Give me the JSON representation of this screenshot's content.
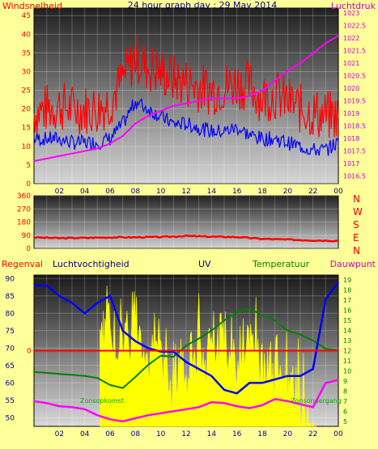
{
  "colors": {
    "background": "#ffff99",
    "wind": "#ff0000",
    "wind_avg": "#0000ff",
    "pressure": "#ff00ff",
    "direction": "#ff0000",
    "rain": "#ff0000",
    "humidity": "#0000ff",
    "uv": "#ffff00",
    "temperature": "#008000",
    "dewpoint": "#ff00ff",
    "dark_text": "#00008b"
  },
  "chart_data": [
    {
      "type": "line",
      "title": "24 hour graph day : 29 May 2014",
      "ylabel_left": "Windsnelheid",
      "ylabel_right": "Luchtdruk",
      "x_ticks": [
        "02",
        "04",
        "06",
        "08",
        "10",
        "12",
        "14",
        "16",
        "18",
        "20",
        "22",
        "00"
      ],
      "y_left_ticks": [
        "0",
        "5",
        "10",
        "15",
        "20",
        "25",
        "30",
        "35",
        "40",
        "45"
      ],
      "y_left_range": [
        0,
        47
      ],
      "y_right_ticks": [
        "1016.5",
        "1017",
        "1017.5",
        "1018",
        "1018.5",
        "1019",
        "1019.5",
        "1020",
        "1020.5",
        "1021",
        "1021.5",
        "1022",
        "1022.5",
        "1023"
      ],
      "y_right_range": [
        1016.2,
        1023.2
      ],
      "series": [
        {
          "key": "gust",
          "hours": [
            0,
            1,
            2,
            3,
            4,
            5,
            6,
            7,
            8,
            9,
            10,
            11,
            12,
            13,
            14,
            15,
            16,
            17,
            18,
            19,
            20,
            21,
            22,
            23,
            24
          ],
          "values": [
            19,
            20,
            21,
            20,
            20,
            20,
            22,
            28,
            34,
            31,
            30,
            28,
            27,
            26,
            25,
            26,
            27,
            26,
            23,
            24,
            22,
            20,
            19,
            18,
            18
          ]
        },
        {
          "key": "avg",
          "hours": [
            0,
            1,
            2,
            3,
            4,
            5,
            6,
            7,
            8,
            9,
            10,
            11,
            12,
            13,
            14,
            15,
            16,
            17,
            18,
            19,
            20,
            21,
            22,
            23,
            24
          ],
          "values": [
            12,
            12,
            12,
            11,
            11,
            11,
            12,
            16,
            22,
            20,
            18,
            16,
            16,
            15,
            14,
            14,
            15,
            13,
            12,
            12,
            11,
            10,
            9,
            9,
            11
          ]
        },
        {
          "key": "pressure",
          "hours": [
            0,
            1,
            2,
            3,
            4,
            5,
            6,
            7,
            8,
            9,
            10,
            11,
            12,
            13,
            14,
            15,
            16,
            17,
            18,
            19,
            20,
            21,
            22,
            23,
            24
          ],
          "values": [
            1017.1,
            1017.2,
            1017.3,
            1017.4,
            1017.5,
            1017.6,
            1017.8,
            1018.1,
            1018.6,
            1018.9,
            1019.1,
            1019.3,
            1019.4,
            1019.5,
            1019.6,
            1019.6,
            1019.6,
            1019.7,
            1019.9,
            1020.3,
            1020.7,
            1021.0,
            1021.4,
            1021.8,
            1022.1
          ]
        }
      ]
    },
    {
      "type": "line",
      "y_labels": [
        "360",
        "270",
        "180",
        "90",
        "0"
      ],
      "direction_letters": [
        "N",
        "W",
        "S",
        "E",
        "N"
      ],
      "y_range": [
        0,
        360
      ],
      "x_ticks": [
        "02",
        "04",
        "06",
        "08",
        "10",
        "12",
        "14",
        "16",
        "18",
        "20",
        "22",
        "00"
      ],
      "series": [
        {
          "key": "direction",
          "hours": [
            0,
            2,
            4,
            6,
            8,
            10,
            12,
            14,
            16,
            18,
            20,
            22,
            24
          ],
          "values": [
            75,
            70,
            72,
            75,
            76,
            78,
            85,
            80,
            78,
            65,
            60,
            55,
            52
          ]
        }
      ]
    },
    {
      "type": "line",
      "labels": {
        "regenval": "Regenval",
        "humidity": "Luchtvochtigheid",
        "uv": "UV",
        "temperature": "Temperatuur",
        "dewpoint": "Dauwpunt"
      },
      "x_ticks": [
        "02",
        "04",
        "06",
        "08",
        "10",
        "12",
        "14",
        "16",
        "18",
        "20",
        "22",
        "00"
      ],
      "y_left_ticks": [
        "50",
        "55",
        "60",
        "65",
        "70",
        "75",
        "80",
        "85",
        "90"
      ],
      "y_left_range": [
        47.5,
        91
      ],
      "y_right_ticks": [
        "5",
        "6",
        "7",
        "8",
        "9",
        "10",
        "11",
        "12",
        "13",
        "14",
        "15",
        "16",
        "17",
        "18",
        "19"
      ],
      "y_right_range": [
        4.5,
        19.5
      ],
      "rain_label": "0",
      "rain_level": 12,
      "annotations": {
        "sunrise": "Zonsopkomst",
        "sunset": "Zonsondergang"
      },
      "sunrise_hour": 5.3,
      "sunset_hour": 22.2,
      "series": [
        {
          "key": "humidity",
          "hours": [
            0,
            1,
            2,
            3,
            4,
            5,
            6,
            7,
            8,
            9,
            10,
            11,
            12,
            13,
            14,
            15,
            16,
            17,
            18,
            19,
            20,
            21,
            22,
            23,
            24
          ],
          "values": [
            88,
            88,
            85,
            83,
            80,
            83,
            85,
            75,
            72,
            70,
            69,
            69,
            66,
            64,
            62,
            58,
            57,
            60,
            60,
            61,
            62,
            62,
            64,
            84,
            89
          ]
        },
        {
          "key": "temperature",
          "hours": [
            0,
            1,
            2,
            3,
            4,
            5,
            6,
            7,
            8,
            9,
            10,
            11,
            12,
            13,
            14,
            15,
            16,
            17,
            18,
            19,
            20,
            21,
            22,
            23,
            24
          ],
          "values": [
            9.9,
            9.8,
            9.7,
            9.6,
            9.5,
            9.3,
            8.6,
            8.3,
            9.4,
            10.6,
            11.5,
            11.4,
            12.5,
            13.2,
            14.0,
            15.0,
            15.8,
            16.2,
            15.5,
            15.0,
            14.0,
            13.6,
            13.0,
            12.2,
            12.0
          ]
        },
        {
          "key": "dewpoint",
          "hours": [
            0,
            1,
            2,
            3,
            4,
            5,
            6,
            7,
            8,
            9,
            10,
            11,
            12,
            13,
            14,
            15,
            16,
            17,
            18,
            19,
            20,
            21,
            22,
            23,
            24
          ],
          "values": [
            7.0,
            6.8,
            6.5,
            6.4,
            6.2,
            5.6,
            5.2,
            5.0,
            5.3,
            5.6,
            5.8,
            6.0,
            6.2,
            6.4,
            6.9,
            6.8,
            6.5,
            6.3,
            6.6,
            7.2,
            7.0,
            6.7,
            6.4,
            8.8,
            9.1
          ]
        },
        {
          "key": "uv",
          "hours": [
            5.2,
            5.5,
            6,
            6.5,
            7,
            7.5,
            8,
            8.5,
            9,
            9.5,
            10,
            10.5,
            11,
            11.5,
            12,
            12.5,
            13,
            13.5,
            14,
            14.5,
            15,
            15.5,
            16,
            16.5,
            17,
            17.5,
            18,
            18.5,
            19,
            19.5,
            20,
            20.5,
            21,
            21.5,
            22,
            22.3
          ],
          "values": [
            15,
            17,
            17,
            16,
            16,
            16,
            18,
            17,
            14,
            16,
            13,
            12,
            11,
            14,
            12,
            16,
            15,
            13,
            16,
            15,
            17,
            14,
            13,
            16,
            14,
            15,
            13,
            14,
            12,
            13,
            12,
            11,
            10,
            8,
            6,
            0
          ]
        }
      ]
    }
  ]
}
